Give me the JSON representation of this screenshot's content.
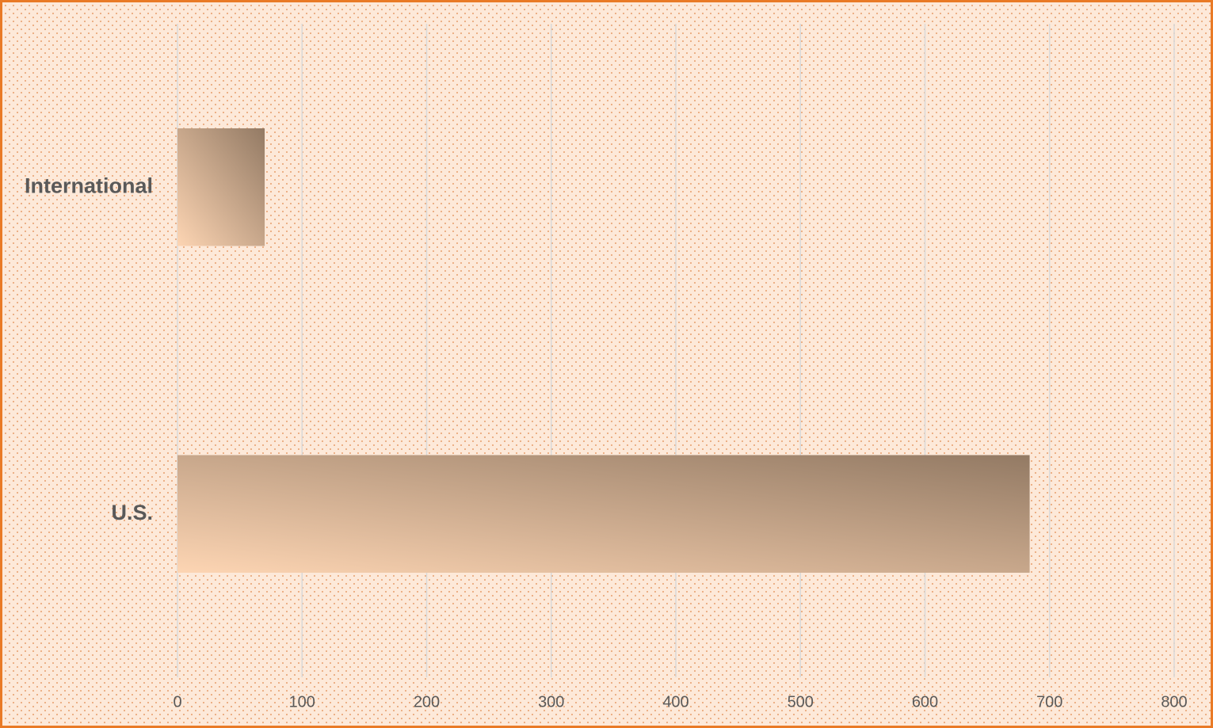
{
  "chart_data": {
    "type": "bar",
    "orientation": "horizontal",
    "categories": [
      "International",
      "U.S."
    ],
    "values": [
      70,
      684
    ],
    "color_start": "#fdd5b3",
    "color_end": "#937a64",
    "xlim": [
      0,
      800
    ],
    "xticks": [
      0,
      100,
      200,
      300,
      400,
      500,
      600,
      700,
      800
    ],
    "grid": true
  }
}
